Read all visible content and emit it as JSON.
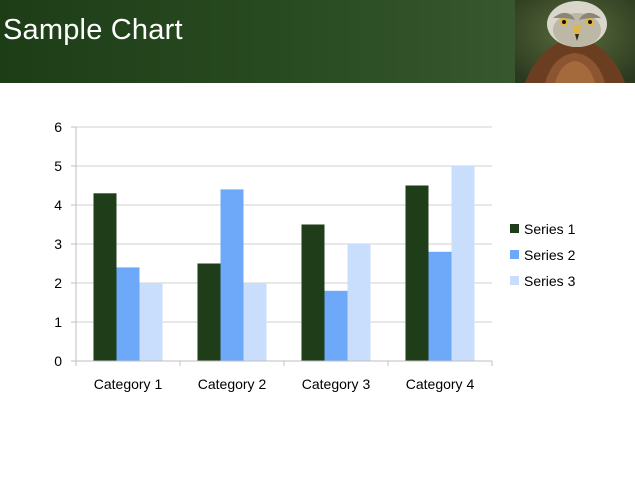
{
  "slide": {
    "title": "Sample Chart"
  },
  "photo": {
    "subject": "bird-of-prey-photo"
  },
  "colors": {
    "header_dark": "#1d3d17",
    "header_light": "#3f5f35",
    "gridline": "#d0d0d0",
    "axis": "#bfbfbf"
  },
  "chart_data": {
    "type": "bar",
    "title": "",
    "xlabel": "",
    "ylabel": "",
    "categories": [
      "Category 1",
      "Category 2",
      "Category 3",
      "Category 4"
    ],
    "series": [
      {
        "name": "Series 1",
        "values": [
          4.3,
          2.5,
          3.5,
          4.5
        ],
        "color": "#1e3d18"
      },
      {
        "name": "Series 2",
        "values": [
          2.4,
          4.4,
          1.8,
          2.8
        ],
        "color": "#6ea8f8"
      },
      {
        "name": "Series 3",
        "values": [
          2.0,
          2.0,
          3.0,
          5.0
        ],
        "color": "#c9ddfc"
      }
    ],
    "ylim": [
      0,
      6
    ],
    "yticks": [
      "0",
      "1",
      "2",
      "3",
      "4",
      "5",
      "6"
    ],
    "grid": true,
    "legend_position": "right"
  }
}
